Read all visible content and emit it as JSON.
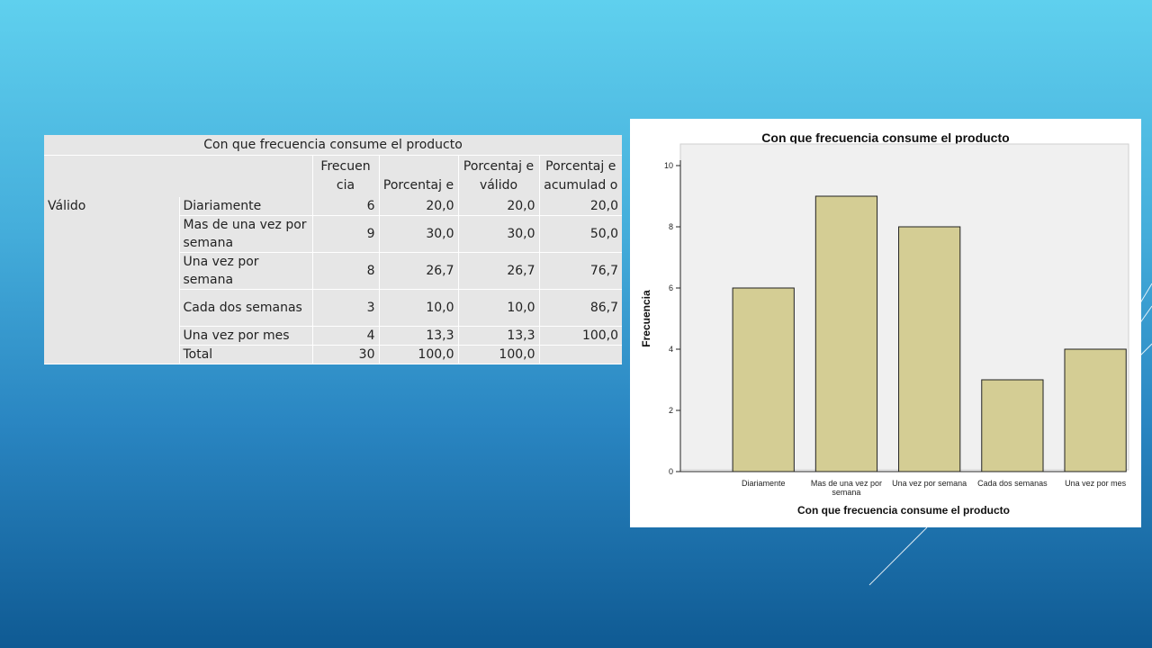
{
  "table": {
    "title": "Con que frecuencia consume el producto",
    "headers": [
      "Frecuen cia",
      "Porcentaj e",
      "Porcentaj e válido",
      "Porcentaj e acumulad o"
    ],
    "group_label": "Válido",
    "rows": [
      {
        "label": "Diariamente",
        "freq": "6",
        "pct": "20,0",
        "valid": "20,0",
        "cum": "20,0"
      },
      {
        "label": "Mas de una vez por semana",
        "freq": "9",
        "pct": "30,0",
        "valid": "30,0",
        "cum": "50,0"
      },
      {
        "label": "Una vez por semana",
        "freq": "8",
        "pct": "26,7",
        "valid": "26,7",
        "cum": "76,7"
      },
      {
        "label": "Cada dos semanas",
        "freq": "3",
        "pct": "10,0",
        "valid": "10,0",
        "cum": "86,7"
      },
      {
        "label": "Una vez por mes",
        "freq": "4",
        "pct": "13,3",
        "valid": "13,3",
        "cum": "100,0"
      },
      {
        "label": "Total",
        "freq": "30",
        "pct": "100,0",
        "valid": "100,0",
        "cum": ""
      }
    ]
  },
  "chart_data": {
    "type": "bar",
    "title": "Con que frecuencia consume el producto",
    "xlabel": "Con que frecuencia consume el producto",
    "ylabel": "Frecuencia",
    "categories": [
      "Diariamente",
      "Mas de una vez por semana",
      "Una vez por semana",
      "Cada dos semanas",
      "Una vez por mes"
    ],
    "values": [
      6,
      9,
      8,
      3,
      4
    ],
    "ylim": [
      0,
      10
    ],
    "yticks": [
      0,
      2,
      4,
      6,
      8,
      10
    ],
    "grid": false,
    "colors": {
      "bar": "#d4cd94",
      "bar_border": "#222222",
      "plot_bg": "#f0f0f0"
    }
  }
}
